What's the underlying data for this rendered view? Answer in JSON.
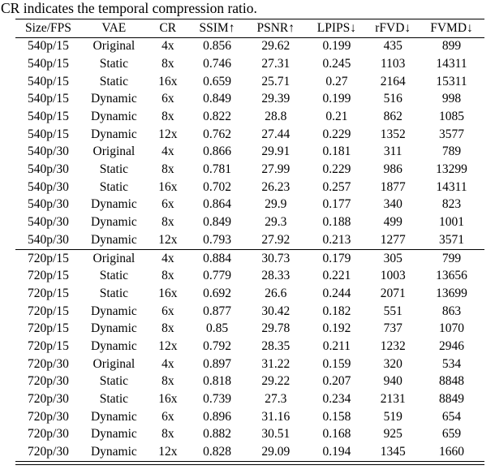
{
  "caption": "CR indicates the temporal compression ratio.",
  "table": {
    "headers": [
      "Size/FPS",
      "VAE",
      "CR",
      "SSIM↑",
      "PSNR↑",
      "LPIPS↓",
      "rFVD↓",
      "FVMD↓"
    ],
    "groups": [
      {
        "rows": [
          [
            "540p/15",
            "Original",
            "4x",
            "0.856",
            "29.62",
            "0.199",
            "435",
            "899"
          ],
          [
            "540p/15",
            "Static",
            "8x",
            "0.746",
            "27.31",
            "0.245",
            "1103",
            "14311"
          ],
          [
            "540p/15",
            "Static",
            "16x",
            "0.659",
            "25.71",
            "0.27",
            "2164",
            "15311"
          ],
          [
            "540p/15",
            "Dynamic",
            "6x",
            "0.849",
            "29.39",
            "0.199",
            "516",
            "998"
          ],
          [
            "540p/15",
            "Dynamic",
            "8x",
            "0.822",
            "28.8",
            "0.21",
            "862",
            "1085"
          ],
          [
            "540p/15",
            "Dynamic",
            "12x",
            "0.762",
            "27.44",
            "0.229",
            "1352",
            "3577"
          ],
          [
            "540p/30",
            "Original",
            "4x",
            "0.866",
            "29.91",
            "0.181",
            "311",
            "789"
          ],
          [
            "540p/30",
            "Static",
            "8x",
            "0.781",
            "27.99",
            "0.229",
            "986",
            "13299"
          ],
          [
            "540p/30",
            "Static",
            "16x",
            "0.702",
            "26.23",
            "0.257",
            "1877",
            "14311"
          ],
          [
            "540p/30",
            "Dynamic",
            "6x",
            "0.864",
            "29.9",
            "0.177",
            "340",
            "823"
          ],
          [
            "540p/30",
            "Dynamic",
            "8x",
            "0.849",
            "29.3",
            "0.188",
            "499",
            "1001"
          ],
          [
            "540p/30",
            "Dynamic",
            "12x",
            "0.793",
            "27.92",
            "0.213",
            "1277",
            "3571"
          ]
        ]
      },
      {
        "rows": [
          [
            "720p/15",
            "Original",
            "4x",
            "0.884",
            "30.73",
            "0.179",
            "305",
            "799"
          ],
          [
            "720p/15",
            "Static",
            "8x",
            "0.779",
            "28.33",
            "0.221",
            "1003",
            "13656"
          ],
          [
            "720p/15",
            "Static",
            "16x",
            "0.692",
            "26.6",
            "0.244",
            "2071",
            "13699"
          ],
          [
            "720p/15",
            "Dynamic",
            "6x",
            "0.877",
            "30.42",
            "0.182",
            "551",
            "863"
          ],
          [
            "720p/15",
            "Dynamic",
            "8x",
            "0.85",
            "29.78",
            "0.192",
            "737",
            "1070"
          ],
          [
            "720p/15",
            "Dynamic",
            "12x",
            "0.792",
            "28.35",
            "0.211",
            "1232",
            "2946"
          ],
          [
            "720p/30",
            "Original",
            "4x",
            "0.897",
            "31.22",
            "0.159",
            "320",
            "534"
          ],
          [
            "720p/30",
            "Static",
            "8x",
            "0.818",
            "29.22",
            "0.207",
            "940",
            "8848"
          ],
          [
            "720p/30",
            "Static",
            "16x",
            "0.739",
            "27.3",
            "0.234",
            "2131",
            "8849"
          ],
          [
            "720p/30",
            "Dynamic",
            "6x",
            "0.896",
            "31.16",
            "0.158",
            "519",
            "654"
          ],
          [
            "720p/30",
            "Dynamic",
            "8x",
            "0.882",
            "30.51",
            "0.168",
            "925",
            "659"
          ],
          [
            "720p/30",
            "Dynamic",
            "12x",
            "0.828",
            "29.09",
            "0.194",
            "1345",
            "1660"
          ]
        ]
      }
    ]
  }
}
